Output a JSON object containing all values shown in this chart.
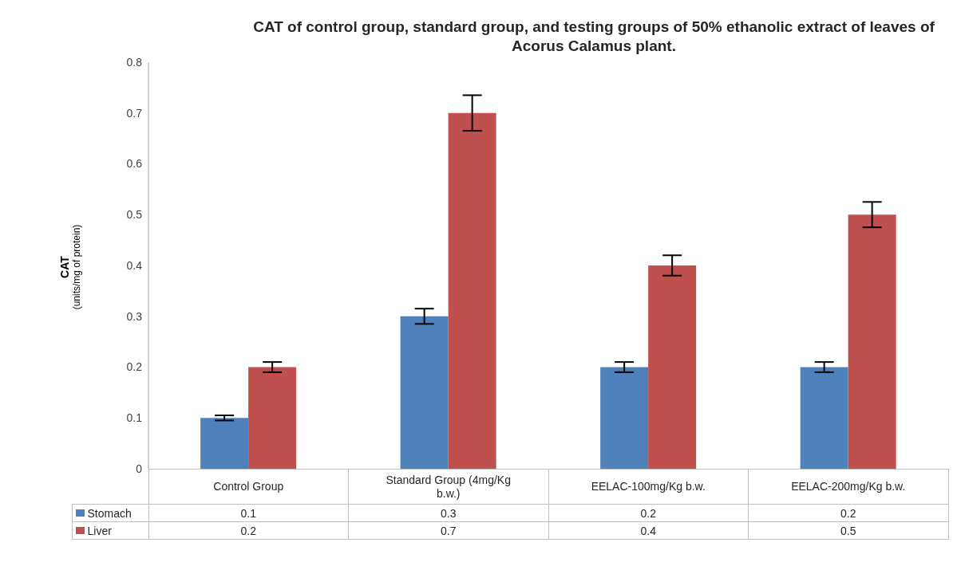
{
  "chart_data": {
    "type": "bar",
    "title": "CAT of control group, standard group, and testing groups of 50% ethanolic extract of leaves of Acorus Calamus plant.",
    "ylabel": "CAT\n(units/mg of protein)",
    "categories": [
      "Control Group",
      "Standard Group (4mg/Kg b.w.)",
      "EELAC-100mg/Kg b.w.",
      "EELAC-200mg/Kg b.w."
    ],
    "series": [
      {
        "name": "Stomach",
        "color": "#4f81bd",
        "values": [
          0.1,
          0.3,
          0.2,
          0.2
        ],
        "errors": [
          0.005,
          0.015,
          0.01,
          0.01
        ]
      },
      {
        "name": "Liver",
        "color": "#c0504d",
        "values": [
          0.2,
          0.7,
          0.4,
          0.5
        ],
        "errors": [
          0.01,
          0.035,
          0.02,
          0.025
        ]
      }
    ],
    "ylim": [
      0,
      0.8
    ],
    "yticks": [
      0,
      0.1,
      0.2,
      0.3,
      0.4,
      0.5,
      0.6,
      0.7,
      0.8
    ],
    "grid": false,
    "legend": "bottom",
    "data_labels": true
  }
}
